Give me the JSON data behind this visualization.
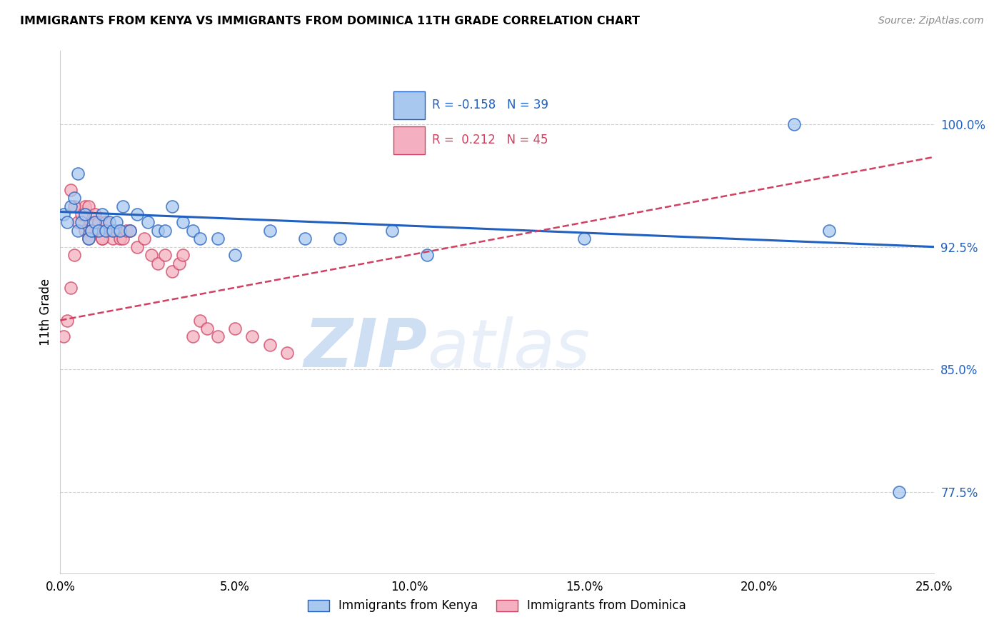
{
  "title": "IMMIGRANTS FROM KENYA VS IMMIGRANTS FROM DOMINICA 11TH GRADE CORRELATION CHART",
  "source": "Source: ZipAtlas.com",
  "ylabel": "11th Grade",
  "legend_label_1": "Immigrants from Kenya",
  "legend_label_2": "Immigrants from Dominica",
  "r_kenya": -0.158,
  "n_kenya": 39,
  "r_dominica": 0.212,
  "n_dominica": 45,
  "xlim": [
    0.0,
    0.25
  ],
  "ylim": [
    0.725,
    1.045
  ],
  "right_yticks": [
    1.0,
    0.925,
    0.85,
    0.775
  ],
  "color_kenya": "#a8c8f0",
  "color_dominica": "#f4b0c0",
  "trend_color_kenya": "#2060c0",
  "trend_color_dominica": "#d04060",
  "watermark_zip": "ZIP",
  "watermark_atlas": "atlas",
  "kenya_x": [
    0.001,
    0.002,
    0.003,
    0.004,
    0.005,
    0.006,
    0.007,
    0.008,
    0.009,
    0.01,
    0.011,
    0.012,
    0.013,
    0.014,
    0.015,
    0.016,
    0.017,
    0.018,
    0.02,
    0.022,
    0.025,
    0.028,
    0.03,
    0.032,
    0.035,
    0.038,
    0.04,
    0.045,
    0.05,
    0.06,
    0.07,
    0.08,
    0.095,
    0.105,
    0.15,
    0.21,
    0.22,
    0.24,
    0.005
  ],
  "kenya_y": [
    0.945,
    0.94,
    0.95,
    0.955,
    0.935,
    0.94,
    0.945,
    0.93,
    0.935,
    0.94,
    0.935,
    0.945,
    0.935,
    0.94,
    0.935,
    0.94,
    0.935,
    0.95,
    0.935,
    0.945,
    0.94,
    0.935,
    0.935,
    0.95,
    0.94,
    0.935,
    0.93,
    0.93,
    0.92,
    0.935,
    0.93,
    0.93,
    0.935,
    0.92,
    0.93,
    1.0,
    0.935,
    0.775,
    0.97
  ],
  "dominica_x": [
    0.001,
    0.002,
    0.003,
    0.004,
    0.005,
    0.006,
    0.007,
    0.008,
    0.009,
    0.01,
    0.011,
    0.012,
    0.013,
    0.014,
    0.015,
    0.016,
    0.017,
    0.018,
    0.019,
    0.02,
    0.022,
    0.024,
    0.026,
    0.028,
    0.03,
    0.032,
    0.034,
    0.035,
    0.038,
    0.04,
    0.042,
    0.045,
    0.05,
    0.055,
    0.06,
    0.065,
    0.007,
    0.008,
    0.009,
    0.01,
    0.011,
    0.012,
    0.013,
    0.003,
    0.004
  ],
  "dominica_y": [
    0.87,
    0.88,
    0.9,
    0.92,
    0.94,
    0.945,
    0.95,
    0.95,
    0.94,
    0.935,
    0.94,
    0.93,
    0.94,
    0.935,
    0.93,
    0.935,
    0.93,
    0.93,
    0.935,
    0.935,
    0.925,
    0.93,
    0.92,
    0.915,
    0.92,
    0.91,
    0.915,
    0.92,
    0.87,
    0.88,
    0.875,
    0.87,
    0.875,
    0.87,
    0.865,
    0.86,
    0.935,
    0.93,
    0.935,
    0.945,
    0.94,
    0.93,
    0.94,
    0.96,
    0.95
  ],
  "kenya_trend_x0": 0.0,
  "kenya_trend_y0": 0.9465,
  "kenya_trend_x1": 0.25,
  "kenya_trend_y1": 0.925,
  "dominica_trend_x0": 0.0,
  "dominica_trend_y0": 0.88,
  "dominica_trend_x1": 0.25,
  "dominica_trend_y1": 0.98
}
